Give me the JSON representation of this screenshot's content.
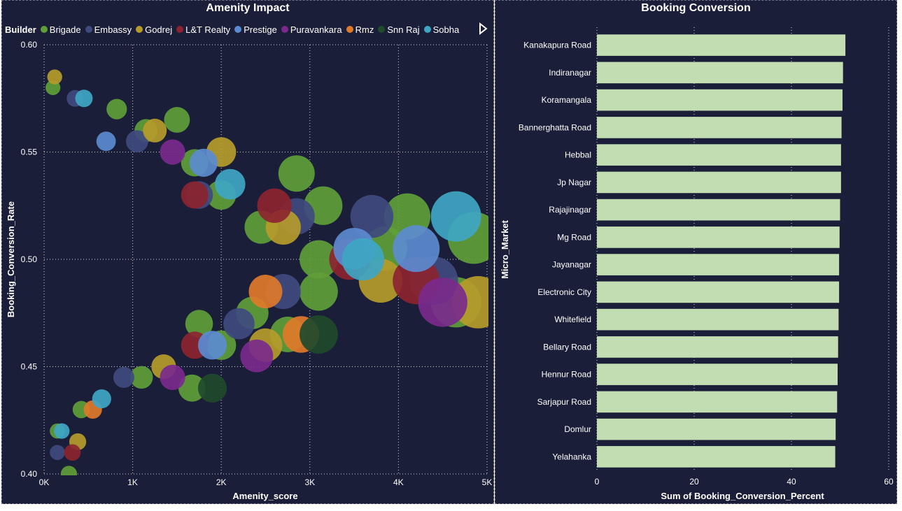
{
  "left_chart": {
    "title": "Amenity Impact",
    "legend_title": "Builder",
    "legend": [
      {
        "name": "Brigade",
        "color": "#5f9e3a"
      },
      {
        "name": "Embassy",
        "color": "#3f4a7e"
      },
      {
        "name": "Godrej",
        "color": "#b59b2b"
      },
      {
        "name": "L&T Realty",
        "color": "#8c2430"
      },
      {
        "name": "Prestige",
        "color": "#5b8bd0"
      },
      {
        "name": "Puravankara",
        "color": "#7a2a8c"
      },
      {
        "name": "Rmz",
        "color": "#e07a2a"
      },
      {
        "name": "Snn Raj",
        "color": "#1f4a2c"
      },
      {
        "name": "Sobha",
        "color": "#3fa6c4"
      }
    ],
    "x_ticks": [
      "0K",
      "1K",
      "2K",
      "3K",
      "4K",
      "5K"
    ],
    "y_ticks": [
      "0.40",
      "0.45",
      "0.50",
      "0.55",
      "0.60"
    ],
    "xlabel": "Amenity_score",
    "ylabel": "Booking_Conversion_Rate"
  },
  "right_chart": {
    "title": "Booking Conversion",
    "x_ticks": [
      "0",
      "20",
      "40",
      "60"
    ],
    "xlabel": "Sum of Booking_Conversion_Percent",
    "ylabel": "Micro_Market"
  },
  "chart_data": [
    {
      "type": "scatter",
      "title": "Amenity Impact",
      "xlabel": "Amenity_score",
      "ylabel": "Booking_Conversion_Rate",
      "xlim": [
        0,
        5000
      ],
      "ylim": [
        0.4,
        0.6
      ],
      "legend_title": "Builder",
      "series": [
        {
          "name": "Brigade",
          "color": "#5f9e3a",
          "points": [
            [
              100,
              0.58
            ],
            [
              280,
              0.4
            ],
            [
              820,
              0.57
            ],
            [
              1150,
              0.56
            ],
            [
              1500,
              0.565
            ],
            [
              1700,
              0.545
            ],
            [
              2000,
              0.53
            ],
            [
              2450,
              0.515
            ],
            [
              2850,
              0.54
            ],
            [
              3150,
              0.525
            ],
            [
              4100,
              0.52
            ],
            [
              4850,
              0.51
            ],
            [
              3850,
              0.505
            ],
            [
              3100,
              0.5
            ],
            [
              4650,
              0.48
            ],
            [
              3100,
              0.485
            ],
            [
              2750,
              0.465
            ],
            [
              2350,
              0.475
            ],
            [
              2000,
              0.46
            ],
            [
              1750,
              0.47
            ],
            [
              1670,
              0.44
            ],
            [
              1100,
              0.445
            ],
            [
              420,
              0.43
            ],
            [
              150,
              0.42
            ]
          ]
        },
        {
          "name": "Embassy",
          "color": "#3f4a7e",
          "points": [
            [
              350,
              0.575
            ],
            [
              1050,
              0.555
            ],
            [
              1750,
              0.53
            ],
            [
              2850,
              0.52
            ],
            [
              3700,
              0.52
            ],
            [
              4400,
              0.49
            ],
            [
              2700,
              0.485
            ],
            [
              2200,
              0.47
            ],
            [
              900,
              0.445
            ],
            [
              150,
              0.41
            ]
          ]
        },
        {
          "name": "Godrej",
          "color": "#b59b2b",
          "points": [
            [
              120,
              0.585
            ],
            [
              1250,
              0.56
            ],
            [
              2000,
              0.55
            ],
            [
              2700,
              0.515
            ],
            [
              3800,
              0.49
            ],
            [
              4900,
              0.48
            ],
            [
              2500,
              0.46
            ],
            [
              1350,
              0.45
            ],
            [
              380,
              0.415
            ]
          ]
        },
        {
          "name": "L&T Realty",
          "color": "#8c2430",
          "points": [
            [
              1700,
              0.53
            ],
            [
              2600,
              0.525
            ],
            [
              3450,
              0.5
            ],
            [
              4200,
              0.49
            ],
            [
              1700,
              0.46
            ],
            [
              320,
              0.41
            ]
          ]
        },
        {
          "name": "Prestige",
          "color": "#5b8bd0",
          "points": [
            [
              700,
              0.555
            ],
            [
              1800,
              0.545
            ],
            [
              4200,
              0.505
            ],
            [
              3500,
              0.505
            ],
            [
              1900,
              0.46
            ]
          ]
        },
        {
          "name": "Puravankara",
          "color": "#7a2a8c",
          "points": [
            [
              1450,
              0.55
            ],
            [
              4500,
              0.48
            ],
            [
              2400,
              0.455
            ],
            [
              1450,
              0.445
            ]
          ]
        },
        {
          "name": "Rmz",
          "color": "#e07a2a",
          "points": [
            [
              2500,
              0.485
            ],
            [
              2900,
              0.465
            ],
            [
              550,
              0.43
            ]
          ]
        },
        {
          "name": "Snn Raj",
          "color": "#1f4a2c",
          "points": [
            [
              3100,
              0.465
            ],
            [
              1900,
              0.44
            ]
          ]
        },
        {
          "name": "Sobha",
          "color": "#3fa6c4",
          "points": [
            [
              450,
              0.575
            ],
            [
              2100,
              0.535
            ],
            [
              4650,
              0.52
            ],
            [
              3600,
              0.5
            ],
            [
              650,
              0.435
            ],
            [
              200,
              0.42
            ]
          ]
        }
      ]
    },
    {
      "type": "bar",
      "title": "Booking Conversion",
      "xlabel": "Sum of Booking_Conversion_Percent",
      "ylabel": "Micro_Market",
      "xlim": [
        0,
        60
      ],
      "color": "#c1ddb1",
      "categories": [
        "Kanakapura Road",
        "Indiranagar",
        "Koramangala",
        "Bannerghatta Road",
        "Hebbal",
        "Jp Nagar",
        "Rajajinagar",
        "Mg Road",
        "Jayanagar",
        "Electronic City",
        "Whitefield",
        "Bellary Road",
        "Hennur Road",
        "Sarjapur Road",
        "Domlur",
        "Yelahanka"
      ],
      "values": [
        51.1,
        50.6,
        50.5,
        50.3,
        50.2,
        50.2,
        50.0,
        49.9,
        49.8,
        49.8,
        49.7,
        49.6,
        49.5,
        49.4,
        49.1,
        49.0
      ]
    }
  ]
}
